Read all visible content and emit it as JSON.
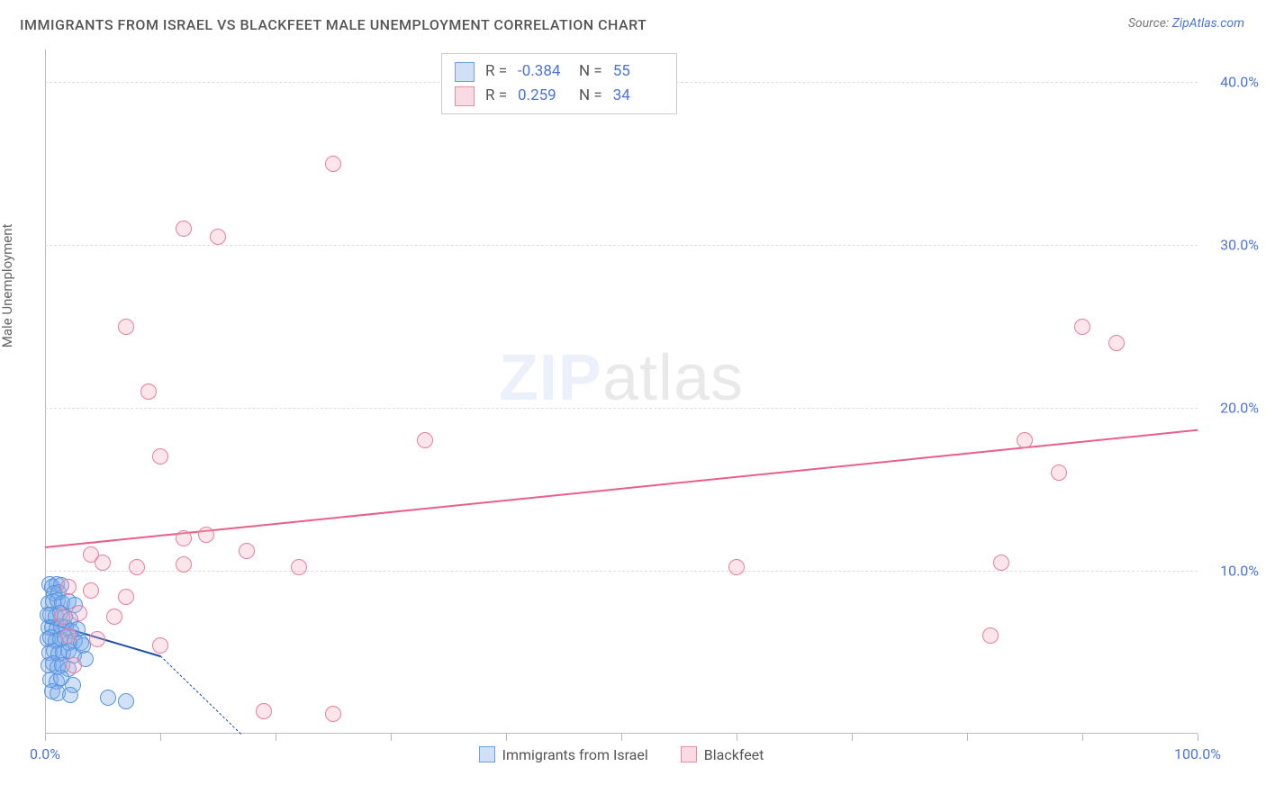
{
  "title": "IMMIGRANTS FROM ISRAEL VS BLACKFEET MALE UNEMPLOYMENT CORRELATION CHART",
  "source_prefix": "Source: ",
  "source_link": "ZipAtlas.com",
  "ylabel": "Male Unemployment",
  "watermark_zip": "ZIP",
  "watermark_atlas": "atlas",
  "chart": {
    "type": "scatter",
    "background_color": "#ffffff",
    "grid_color": "#dddddd",
    "axis_color": "#bbbbbb",
    "xlim": [
      0,
      100
    ],
    "ylim": [
      0,
      42
    ],
    "x_tick_positions": [
      0,
      10,
      20,
      30,
      40,
      50,
      60,
      70,
      80,
      90,
      100
    ],
    "x_tick_labels": {
      "0": "0.0%",
      "100": "100.0%"
    },
    "y_tick_positions": [
      10,
      20,
      30,
      40
    ],
    "y_tick_labels": {
      "10": "10.0%",
      "20": "20.0%",
      "30": "30.0%",
      "40": "40.0%"
    },
    "tick_label_color": "#4a74d8",
    "tick_label_fontsize": 16,
    "marker_radius": 9,
    "marker_border_width": 1.5,
    "legend_top": {
      "border_color": "#cccccc",
      "rows": [
        {
          "swatch_fill": "#cfe0f7",
          "swatch_border": "#6aa0e8",
          "R_label": "R =",
          "R": "-0.384",
          "N_label": "N =",
          "N": "55"
        },
        {
          "swatch_fill": "#fadbe3",
          "swatch_border": "#e98ba6",
          "R_label": "R =",
          "R": "0.259",
          "N_label": "N =",
          "N": "34"
        }
      ]
    },
    "bottom_legend": [
      {
        "swatch_fill": "#cfe0f7",
        "swatch_border": "#6aa0e8",
        "label": "Immigrants from Israel"
      },
      {
        "swatch_fill": "#fadbe3",
        "swatch_border": "#e98ba6",
        "label": "Blackfeet"
      }
    ],
    "series": [
      {
        "name": "Immigrants from Israel",
        "fill": "rgba(122,172,236,0.35)",
        "stroke": "#5a94de",
        "regression_color": "#1d4ea8",
        "regression_solid": {
          "x1": 0,
          "y1": 6.9,
          "x2": 10,
          "y2": 4.8
        },
        "regression_dash": {
          "x1": 10,
          "y1": 4.8,
          "x2": 17,
          "y2": 0.0
        },
        "points": [
          [
            0.4,
            9.2
          ],
          [
            0.6,
            9.0
          ],
          [
            1.0,
            9.2
          ],
          [
            1.4,
            9.1
          ],
          [
            0.8,
            8.6
          ],
          [
            1.2,
            8.7
          ],
          [
            0.3,
            8.0
          ],
          [
            0.7,
            8.1
          ],
          [
            1.1,
            8.2
          ],
          [
            1.5,
            8.0
          ],
          [
            2.0,
            8.1
          ],
          [
            0.2,
            7.3
          ],
          [
            0.5,
            7.3
          ],
          [
            0.9,
            7.2
          ],
          [
            1.3,
            7.4
          ],
          [
            1.7,
            7.2
          ],
          [
            2.2,
            7.0
          ],
          [
            2.6,
            7.9
          ],
          [
            0.3,
            6.5
          ],
          [
            0.6,
            6.5
          ],
          [
            1.0,
            6.4
          ],
          [
            1.4,
            6.6
          ],
          [
            1.8,
            6.5
          ],
          [
            2.3,
            6.3
          ],
          [
            2.8,
            6.4
          ],
          [
            0.2,
            5.8
          ],
          [
            0.5,
            5.9
          ],
          [
            0.9,
            5.7
          ],
          [
            1.3,
            5.8
          ],
          [
            1.7,
            5.9
          ],
          [
            2.1,
            5.6
          ],
          [
            2.6,
            5.7
          ],
          [
            3.1,
            5.6
          ],
          [
            0.4,
            5.0
          ],
          [
            0.8,
            5.1
          ],
          [
            1.2,
            4.9
          ],
          [
            1.6,
            5.0
          ],
          [
            2.0,
            5.1
          ],
          [
            2.5,
            4.8
          ],
          [
            0.3,
            4.2
          ],
          [
            0.7,
            4.3
          ],
          [
            1.1,
            4.1
          ],
          [
            1.5,
            4.2
          ],
          [
            2.0,
            4.0
          ],
          [
            3.3,
            5.4
          ],
          [
            0.5,
            3.3
          ],
          [
            1.0,
            3.2
          ],
          [
            1.4,
            3.4
          ],
          [
            2.4,
            3.0
          ],
          [
            0.6,
            2.6
          ],
          [
            1.1,
            2.5
          ],
          [
            2.2,
            2.4
          ],
          [
            3.5,
            4.6
          ],
          [
            5.5,
            2.2
          ],
          [
            7.0,
            2.0
          ]
        ]
      },
      {
        "name": "Blackfeet",
        "fill": "rgba(244,170,190,0.30)",
        "stroke": "#e77f9e",
        "regression_color": "#e95f87",
        "regression_solid": {
          "x1": 0,
          "y1": 11.5,
          "x2": 100,
          "y2": 18.7
        },
        "points": [
          [
            25.0,
            35.0
          ],
          [
            12.0,
            31.0
          ],
          [
            15.0,
            30.5
          ],
          [
            7.0,
            25.0
          ],
          [
            90.0,
            25.0
          ],
          [
            93.0,
            24.0
          ],
          [
            9.0,
            21.0
          ],
          [
            10.0,
            17.0
          ],
          [
            33.0,
            18.0
          ],
          [
            85.0,
            18.0
          ],
          [
            88.0,
            16.0
          ],
          [
            4.0,
            11.0
          ],
          [
            12.0,
            12.0
          ],
          [
            14.0,
            12.2
          ],
          [
            17.5,
            11.2
          ],
          [
            5.0,
            10.5
          ],
          [
            8.0,
            10.2
          ],
          [
            12.0,
            10.4
          ],
          [
            22.0,
            10.2
          ],
          [
            60.0,
            10.2
          ],
          [
            83.0,
            10.5
          ],
          [
            2.0,
            9.0
          ],
          [
            4.0,
            8.8
          ],
          [
            7.0,
            8.4
          ],
          [
            1.5,
            7.2
          ],
          [
            3.0,
            7.4
          ],
          [
            6.0,
            7.2
          ],
          [
            2.0,
            6.0
          ],
          [
            4.5,
            5.8
          ],
          [
            82.0,
            6.0
          ],
          [
            10.0,
            5.4
          ],
          [
            19.0,
            1.4
          ],
          [
            25.0,
            1.2
          ],
          [
            2.5,
            4.2
          ]
        ]
      }
    ]
  }
}
